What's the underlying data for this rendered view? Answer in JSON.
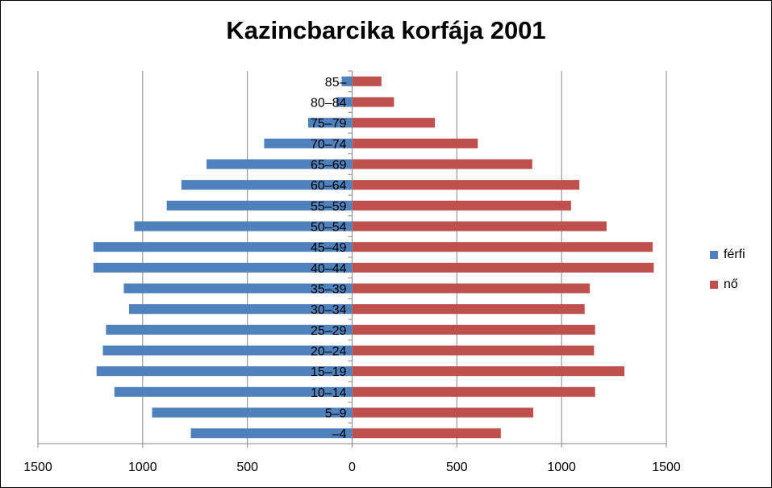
{
  "chart_data": {
    "type": "bar",
    "orientation": "horizontal",
    "title": "Kazincbarcika korfája 2001",
    "categories": [
      "–4",
      "5–9",
      "10–14",
      "15–19",
      "20–24",
      "25–29",
      "30–34",
      "35–39",
      "40–44",
      "45–49",
      "50–54",
      "55–59",
      "60–64",
      "65–69",
      "70–74",
      "75–79",
      "80–84",
      "85–"
    ],
    "series": [
      {
        "name": "férfi",
        "color": "#4f81bd",
        "values": [
          770,
          955,
          1135,
          1220,
          1190,
          1175,
          1065,
          1090,
          1235,
          1235,
          1040,
          885,
          815,
          695,
          420,
          210,
          75,
          50
        ]
      },
      {
        "name": "nő",
        "color": "#c0504d",
        "values": [
          710,
          865,
          1160,
          1300,
          1155,
          1160,
          1110,
          1135,
          1440,
          1435,
          1215,
          1045,
          1085,
          860,
          600,
          395,
          200,
          140
        ]
      }
    ],
    "x_tick_labels": [
      "1500",
      "1000",
      "500",
      "0",
      "500",
      "1000",
      "1500"
    ],
    "xlim": [
      -1500,
      1500
    ],
    "grid": true,
    "legend_position": "right"
  }
}
